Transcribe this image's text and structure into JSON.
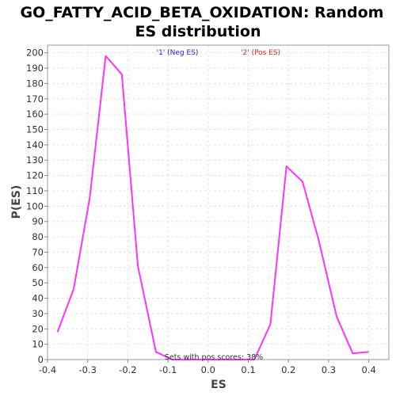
{
  "chart_data": {
    "type": "line",
    "title": "GO_FATTY_ACID_BETA_OXIDATION: Random ES distribution",
    "title_lines": [
      "GO_FATTY_ACID_BETA_OXIDATION: Random",
      "ES distribution"
    ],
    "xlabel": "ES",
    "ylabel": "P(ES)",
    "xlim": [
      -0.4,
      0.45
    ],
    "ylim": [
      0,
      205
    ],
    "x_ticks": [
      -0.4,
      -0.3,
      -0.2,
      -0.1,
      0.0,
      0.1,
      0.2,
      0.3,
      0.4
    ],
    "x_tick_labels": [
      "-0.4",
      "-0.3",
      "-0.2",
      "-0.1",
      "0.0",
      "0.1",
      "0.2",
      "0.3",
      "0.4"
    ],
    "y_ticks": [
      0,
      10,
      20,
      30,
      40,
      50,
      60,
      70,
      80,
      90,
      100,
      110,
      120,
      130,
      140,
      150,
      160,
      170,
      180,
      190,
      200
    ],
    "grid": true,
    "legend": [
      {
        "label": "'1' (Neg ES)",
        "color": "#2222dd"
      },
      {
        "label": "'2' (Pos ES)",
        "color": "#dd2222"
      }
    ],
    "legend_placement": "top-center",
    "annotation": "Sets with pos scores: 38%",
    "series": [
      {
        "color": "#ff33ff",
        "points": [
          [
            -0.375,
            18
          ],
          [
            -0.335,
            46
          ],
          [
            -0.295,
            105
          ],
          [
            -0.255,
            198
          ],
          [
            -0.215,
            186
          ],
          [
            -0.175,
            61
          ],
          [
            -0.13,
            5
          ],
          [
            -0.09,
            0
          ],
          [
            0.0,
            0
          ],
          [
            0.115,
            0
          ],
          [
            0.155,
            23
          ],
          [
            0.195,
            126
          ],
          [
            0.235,
            116
          ],
          [
            0.275,
            78
          ],
          [
            0.32,
            28
          ],
          [
            0.36,
            4
          ],
          [
            0.4,
            5
          ]
        ]
      }
    ]
  }
}
